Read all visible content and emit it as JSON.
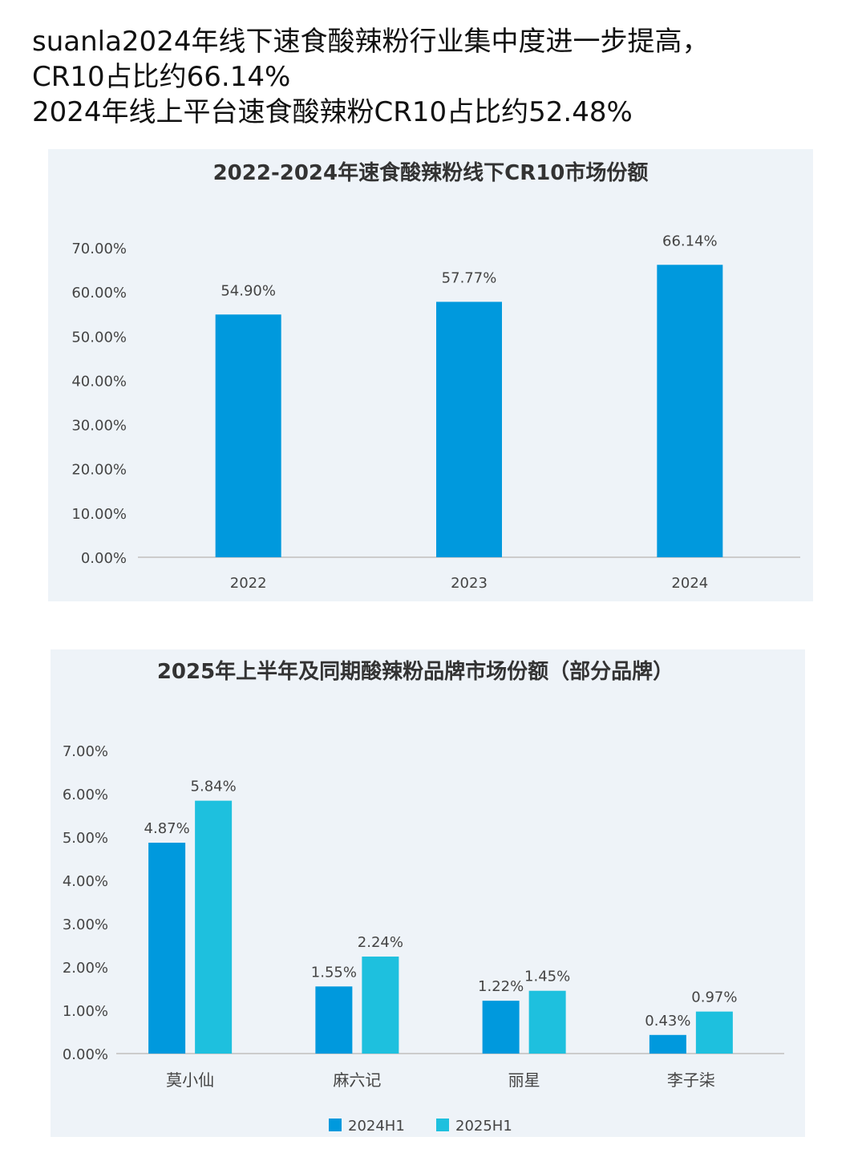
{
  "headline": {
    "line1": "suanla2024年线下速食酸辣粉行业集中度进一步提高，",
    "line2": "CR10占比约66.14%",
    "line3": "2024年线上平台速食酸辣粉CR10占比约52.48%"
  },
  "colors": {
    "panel_bg": "#eef3f8",
    "series_2024H1": "#0099dd",
    "series_2025H1": "#1ec0de",
    "bar_main": "#0099dd",
    "axis_text": "#444444",
    "grid": "#cccccc"
  },
  "chart_data": [
    {
      "type": "bar",
      "title": "2022-2024年速食酸辣粉线下CR10市场份额",
      "categories": [
        "2022",
        "2023",
        "2024"
      ],
      "values": [
        54.9,
        57.77,
        66.14
      ],
      "value_labels": [
        "54.90%",
        "57.77%",
        "66.14%"
      ],
      "yticks": [
        "0.00%",
        "10.00%",
        "20.00%",
        "30.00%",
        "40.00%",
        "50.00%",
        "60.00%",
        "70.00%"
      ],
      "ylim": [
        0,
        70
      ],
      "grid": false,
      "legend": "none"
    },
    {
      "type": "bar",
      "title": "2025年上半年及同期酸辣粉品牌市场份额（部分品牌）",
      "categories": [
        "莫小仙",
        "麻六记",
        "丽星",
        "李子柒"
      ],
      "series": [
        {
          "name": "2024H1",
          "values": [
            4.87,
            1.55,
            1.22,
            0.43
          ],
          "labels": [
            "4.87%",
            "1.55%",
            "1.22%",
            "0.43%"
          ]
        },
        {
          "name": "2025H1",
          "values": [
            5.84,
            2.24,
            1.45,
            0.97
          ],
          "labels": [
            "5.84%",
            "2.24%",
            "1.45%",
            "0.97%"
          ]
        }
      ],
      "yticks": [
        "0.00%",
        "1.00%",
        "2.00%",
        "3.00%",
        "4.00%",
        "5.00%",
        "6.00%",
        "7.00%"
      ],
      "ylim": [
        0,
        7
      ],
      "grid": false,
      "legend": "bottom"
    }
  ]
}
